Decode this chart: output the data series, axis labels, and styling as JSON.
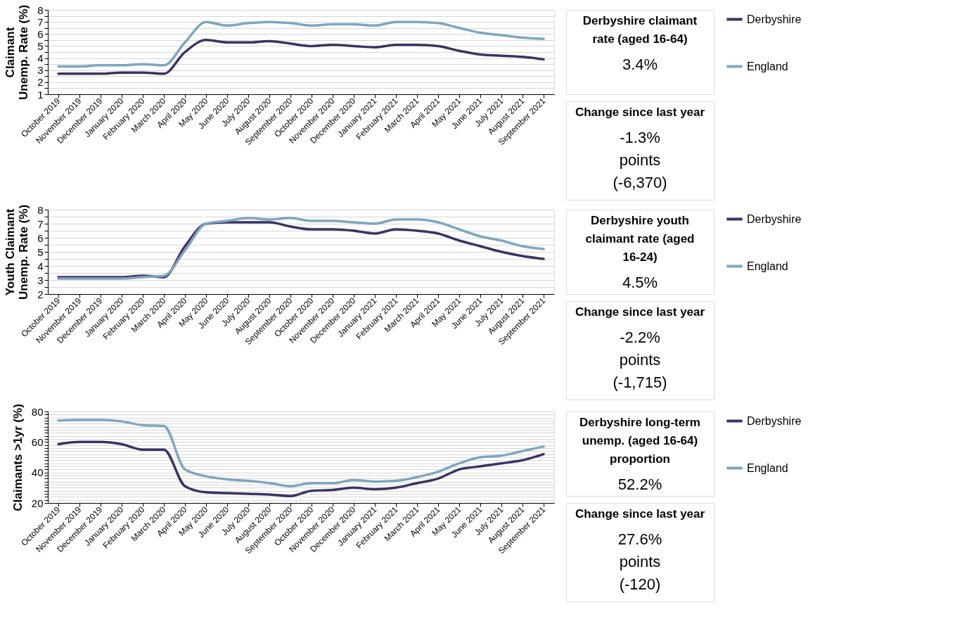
{
  "chart_data": [
    {
      "type": "line",
      "ylabel": "Claimant Unemp. Rate (%)",
      "categories": [
        "October 2019",
        "November 2019",
        "December 2019",
        "January 2020",
        "February 2020",
        "March 2020",
        "April 2020",
        "May 2020",
        "June 2020",
        "July 2020",
        "August 2020",
        "September 2020",
        "October 2020",
        "November 2020",
        "December 2020",
        "January 2021",
        "February 2021",
        "March 2021",
        "April 2021",
        "May 2021",
        "June 2021",
        "July 2021",
        "August 2021",
        "September 2021"
      ],
      "ylim": [
        1,
        8
      ],
      "yticks": [
        1,
        {
          "value": 1.5,
          "label": null
        },
        2,
        {
          "value": 2.5,
          "label": null
        },
        3,
        {
          "value": 3.5,
          "label": null
        },
        4,
        {
          "value": 4.5,
          "label": null
        },
        5,
        {
          "value": 5.5,
          "label": null
        },
        6,
        {
          "value": 6.5,
          "label": null
        },
        7,
        {
          "value": 7.5,
          "label": null
        },
        8
      ],
      "grid": "y",
      "legend": "right",
      "series": [
        {
          "name": "Derbyshire",
          "color": "#3b3363",
          "values": [
            2.7,
            2.7,
            2.7,
            2.8,
            2.8,
            2.7,
            4.5,
            5.5,
            5.3,
            5.3,
            5.4,
            5.2,
            5.0,
            5.1,
            5.0,
            4.9,
            5.1,
            5.1,
            5.0,
            4.6,
            4.3,
            4.2,
            4.1,
            3.9
          ]
        },
        {
          "name": "England",
          "color": "#7ea6c0",
          "values": [
            3.3,
            3.3,
            3.4,
            3.4,
            3.5,
            3.4,
            5.3,
            7.0,
            6.7,
            6.9,
            7.0,
            6.9,
            6.7,
            6.8,
            6.8,
            6.7,
            7.0,
            7.0,
            6.9,
            6.5,
            6.1,
            5.9,
            5.7,
            5.6
          ]
        }
      ]
    },
    {
      "type": "other",
      "title": "Derbyshire claimant rate (aged 16-64)",
      "annotations": [
        "3.4%"
      ]
    },
    {
      "type": "other",
      "title": "Change since last year",
      "annotations": [
        "-1.3%",
        "points",
        "(-6,370)"
      ]
    },
    {
      "type": "line",
      "ylabel": "Youth Claimant Unemp. Rate (%)",
      "categories": [
        "October 2019",
        "November 2019",
        "December 2019",
        "January 2020",
        "February 2020",
        "March 2020",
        "April 2020",
        "May 2020",
        "June 2020",
        "July 2020",
        "August 2020",
        "September 2020",
        "October 2020",
        "November 2020",
        "December 2020",
        "January 2021",
        "February 2021",
        "March 2021",
        "April 2021",
        "May 2021",
        "June 2021",
        "July 2021",
        "August 2021",
        "September 2021"
      ],
      "ylim": [
        2,
        8
      ],
      "yticks": [
        2,
        {
          "value": 2.5,
          "label": null
        },
        3,
        {
          "value": 3.5,
          "label": null
        },
        4,
        {
          "value": 4.5,
          "label": null
        },
        5,
        {
          "value": 5.5,
          "label": null
        },
        6,
        {
          "value": 6.5,
          "label": null
        },
        7,
        {
          "value": 7.5,
          "label": null
        },
        8
      ],
      "grid": "y",
      "legend": "right",
      "series": [
        {
          "name": "Derbyshire",
          "color": "#3b3363",
          "values": [
            3.2,
            3.2,
            3.2,
            3.2,
            3.3,
            3.2,
            5.4,
            7.0,
            7.1,
            7.1,
            7.1,
            6.8,
            6.6,
            6.6,
            6.5,
            6.3,
            6.6,
            6.5,
            6.3,
            5.8,
            5.4,
            5.0,
            4.7,
            4.5
          ]
        },
        {
          "name": "England",
          "color": "#7ea6c0",
          "values": [
            3.1,
            3.1,
            3.1,
            3.1,
            3.2,
            3.3,
            5.1,
            7.0,
            7.2,
            7.4,
            7.3,
            7.4,
            7.2,
            7.2,
            7.1,
            7.0,
            7.3,
            7.3,
            7.1,
            6.6,
            6.1,
            5.8,
            5.4,
            5.2
          ]
        }
      ]
    },
    {
      "type": "other",
      "title": "Derbyshire youth claimant rate (aged 16-24)",
      "annotations": [
        "4.5%"
      ]
    },
    {
      "type": "other",
      "title": "Change since last year",
      "annotations": [
        "-2.2%",
        "points",
        "(-1,715)"
      ]
    },
    {
      "type": "line",
      "ylabel": "Claimants >1yr (%)",
      "categories": [
        "October 2019",
        "November 2019",
        "December 2019",
        "January 2020",
        "February 2020",
        "March 2020",
        "April 2020",
        "May 2020",
        "June 2020",
        "July 2020",
        "August 2020",
        "September 2020",
        "October 2020",
        "November 2020",
        "December 2020",
        "January 2021",
        "February 2021",
        "March 2021",
        "April 2021",
        "May 2021",
        "June 2021",
        "July 2021",
        "August 2021",
        "September 2021"
      ],
      "ylim": [
        20,
        80
      ],
      "yticks": [
        20,
        {
          "value": 22,
          "label": null
        },
        {
          "value": 24,
          "label": null
        },
        {
          "value": 26,
          "label": null
        },
        {
          "value": 28,
          "label": null
        },
        {
          "value": 30,
          "label": null
        },
        {
          "value": 32,
          "label": null
        },
        {
          "value": 34,
          "label": null
        },
        {
          "value": 36,
          "label": null
        },
        {
          "value": 38,
          "label": null
        },
        40,
        {
          "value": 42,
          "label": null
        },
        {
          "value": 44,
          "label": null
        },
        {
          "value": 46,
          "label": null
        },
        {
          "value": 48,
          "label": null
        },
        {
          "value": 50,
          "label": null
        },
        {
          "value": 52,
          "label": null
        },
        {
          "value": 54,
          "label": null
        },
        {
          "value": 56,
          "label": null
        },
        {
          "value": 58,
          "label": null
        },
        60,
        {
          "value": 62,
          "label": null
        },
        {
          "value": 64,
          "label": null
        },
        {
          "value": 66,
          "label": null
        },
        {
          "value": 68,
          "label": null
        },
        {
          "value": 70,
          "label": null
        },
        {
          "value": 72,
          "label": null
        },
        {
          "value": 74,
          "label": null
        },
        {
          "value": 76,
          "label": null
        },
        {
          "value": 78,
          "label": null
        },
        80
      ],
      "grid": "y",
      "legend": "right",
      "series": [
        {
          "name": "Derbyshire",
          "color": "#3b3363",
          "values": [
            58.5,
            60,
            60,
            58.5,
            55,
            55,
            31,
            27,
            26.5,
            26,
            25.5,
            24.5,
            28,
            28.5,
            30,
            29,
            30,
            33,
            36,
            42,
            44,
            46,
            48,
            52
          ]
        },
        {
          "name": "England",
          "color": "#7ea6c0",
          "values": [
            74,
            74.5,
            74.5,
            73.5,
            71,
            70.5,
            42,
            37.5,
            35.5,
            34.5,
            33,
            31,
            33,
            33,
            35,
            34,
            34.5,
            37,
            40.5,
            46,
            50,
            51,
            54,
            57
          ]
        }
      ]
    },
    {
      "type": "other",
      "title": "Derbyshire long-term unemp. (aged 16-64) proportion",
      "annotations": [
        "52.2%"
      ]
    },
    {
      "type": "other",
      "title": "Change since last year",
      "annotations": [
        "27.6%",
        "points",
        "(-120)"
      ]
    }
  ]
}
